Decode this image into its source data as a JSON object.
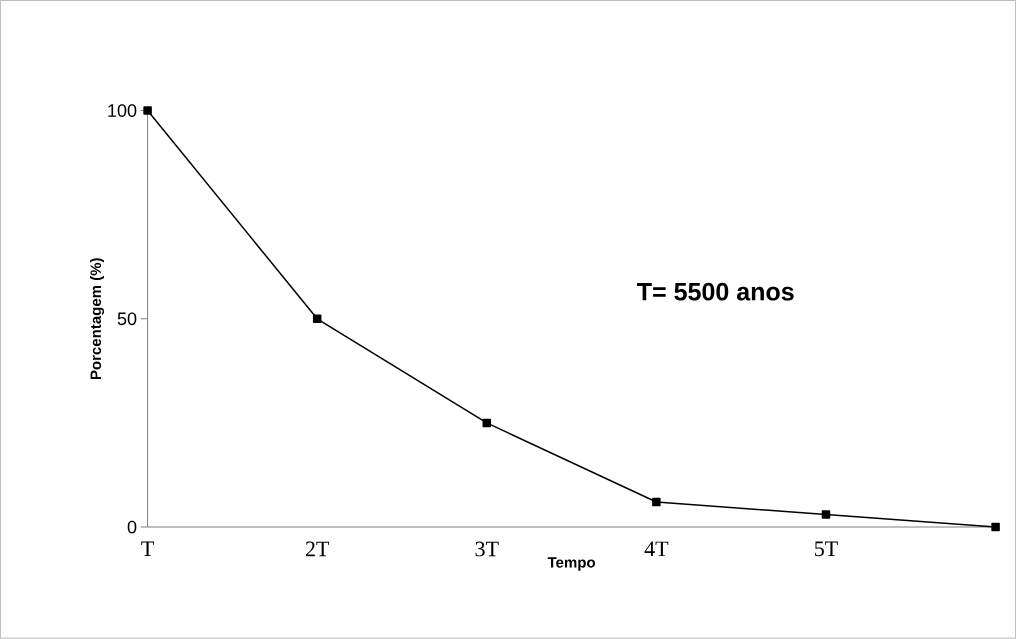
{
  "chart_data": {
    "type": "line",
    "xlabel": "Tempo",
    "ylabel": "Porcentagem (%)",
    "categories": [
      "T",
      "2T",
      "3T",
      "4T",
      "5T",
      null
    ],
    "series": [
      {
        "color": "#000000",
        "values": [
          100,
          50,
          25,
          6,
          3,
          0
        ]
      }
    ],
    "ylim": [
      0,
      100
    ],
    "yticks": [
      0,
      50,
      100
    ],
    "marker": "square",
    "line_style": "solid",
    "annotations": [
      "T= 5500 anos"
    ]
  }
}
